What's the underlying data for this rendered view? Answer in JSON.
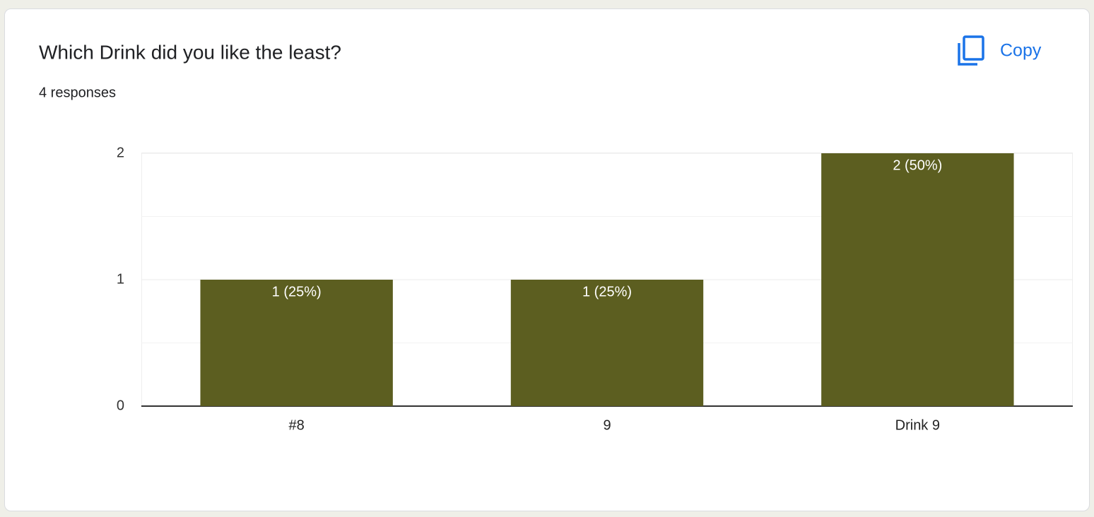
{
  "chart_data": {
    "type": "bar",
    "title": "Which Drink did you like the least?",
    "subtitle": "4 responses",
    "button": "Copy",
    "categories": [
      "#8",
      "9",
      "Drink 9"
    ],
    "values": [
      1,
      1,
      2
    ],
    "value_labels": [
      "1 (25%)",
      "1 (25%)",
      "2 (50%)"
    ],
    "color": "#5c5e20",
    "ylim": [
      0,
      2
    ],
    "yticks": [
      0,
      1,
      2
    ],
    "grid": true
  }
}
